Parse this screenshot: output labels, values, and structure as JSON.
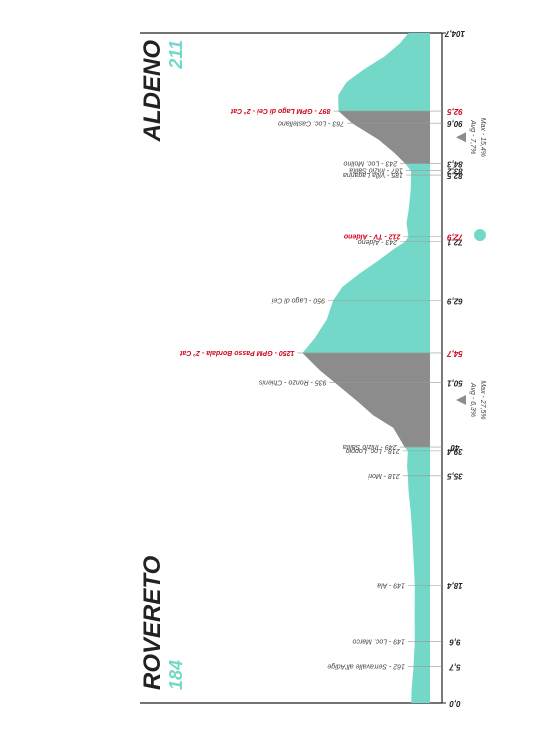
{
  "chart_data": {
    "type": "area",
    "start": {
      "name": "ROVERETO",
      "elevation": 184
    },
    "finish": {
      "name": "ALDENO",
      "elevation": 211
    },
    "color": "#74d8c8",
    "climb_color": "#8c8c8c",
    "highlight_color": "#d0021b",
    "xlim": [
      0,
      104.7
    ],
    "xticks": [
      {
        "value": 0,
        "label": "0,0"
      },
      {
        "value": 104.7,
        "label": "104,7"
      }
    ],
    "x": [
      0,
      2,
      5.7,
      9.6,
      12,
      15,
      18.4,
      22,
      25,
      28,
      30,
      33,
      35.5,
      37,
      39.4,
      40,
      43,
      45,
      47,
      50.1,
      52,
      54.7,
      57,
      60,
      62.9,
      65,
      67,
      69,
      71,
      72.1,
      72.9,
      75,
      77,
      80,
      82.5,
      83.2,
      84.3,
      86,
      88,
      90.6,
      92.5,
      95,
      97,
      99,
      101,
      103,
      104.7
    ],
    "values": [
      184,
      180,
      162,
      149,
      150,
      150,
      149,
      160,
      170,
      180,
      190,
      210,
      218,
      225,
      218,
      249,
      360,
      560,
      700,
      935,
      1080,
      1250,
      1130,
      1010,
      950,
      860,
      700,
      520,
      350,
      243,
      212,
      230,
      210,
      190,
      185,
      187,
      243,
      350,
      500,
      763,
      897,
      900,
      820,
      650,
      450,
      300,
      211
    ],
    "waypoints": [
      {
        "km": {
          "value": 5.7,
          "label": "5,7"
        },
        "label": "162 - Serravalle all'Adige",
        "highlight": false
      },
      {
        "km": {
          "value": 9.6,
          "label": "9,6"
        },
        "label": "149 - Loc. Marco",
        "highlight": false
      },
      {
        "km": {
          "value": 18.4,
          "label": "18,4"
        },
        "label": "149 - Ala",
        "highlight": false
      },
      {
        "km": {
          "value": 35.5,
          "label": "35,5"
        },
        "label": "218 - Mori",
        "highlight": false
      },
      {
        "km": {
          "value": 39.4,
          "label": "39,4"
        },
        "label": "218 - Loc. Loppio",
        "highlight": false
      },
      {
        "km": {
          "value": 40,
          "label": "40"
        },
        "label": "249 - Inizio Salita",
        "highlight": false
      },
      {
        "km": {
          "value": 50.1,
          "label": "50,1"
        },
        "label": "935 - Ronzo - Chienis",
        "highlight": false
      },
      {
        "km": {
          "value": 54.7,
          "label": "54,7"
        },
        "label": "1250 - GPM Passo Bordala - 2° Cat",
        "highlight": true
      },
      {
        "km": {
          "value": 62.9,
          "label": "62,9"
        },
        "label": "950 - Lago di Cei",
        "highlight": false
      },
      {
        "km": {
          "value": 72.1,
          "label": "72,1"
        },
        "label": "243 - Aldeno",
        "highlight": false
      },
      {
        "km": {
          "value": 72.9,
          "label": "72,9"
        },
        "label": "212 - TV - Aldeno",
        "highlight": true
      },
      {
        "km": {
          "value": 82.5,
          "label": "82,5"
        },
        "label": "185 - Villa Lagarina",
        "highlight": false
      },
      {
        "km": {
          "value": 83.2,
          "label": "83,2"
        },
        "label": "187 - Inizio Salita",
        "highlight": false
      },
      {
        "km": {
          "value": 84.3,
          "label": "84,3"
        },
        "label": "243 - Loc. Molino",
        "highlight": false
      },
      {
        "km": {
          "value": 90.6,
          "label": "90,6"
        },
        "label": "763 - Loc. Castellano",
        "highlight": false
      },
      {
        "km": {
          "value": 92.5,
          "label": "92,5"
        },
        "label": "897 - GPM Lago di Cei - 2° Cat",
        "highlight": true
      }
    ],
    "climbs": [
      {
        "start": 40,
        "end": 54.7,
        "avg": "Avg - 6,3%",
        "max": "Max - 27,5%"
      },
      {
        "start": 84.3,
        "end": 92.5,
        "avg": "Avg - 7,7%",
        "max": "Max - 15,4%"
      }
    ]
  }
}
